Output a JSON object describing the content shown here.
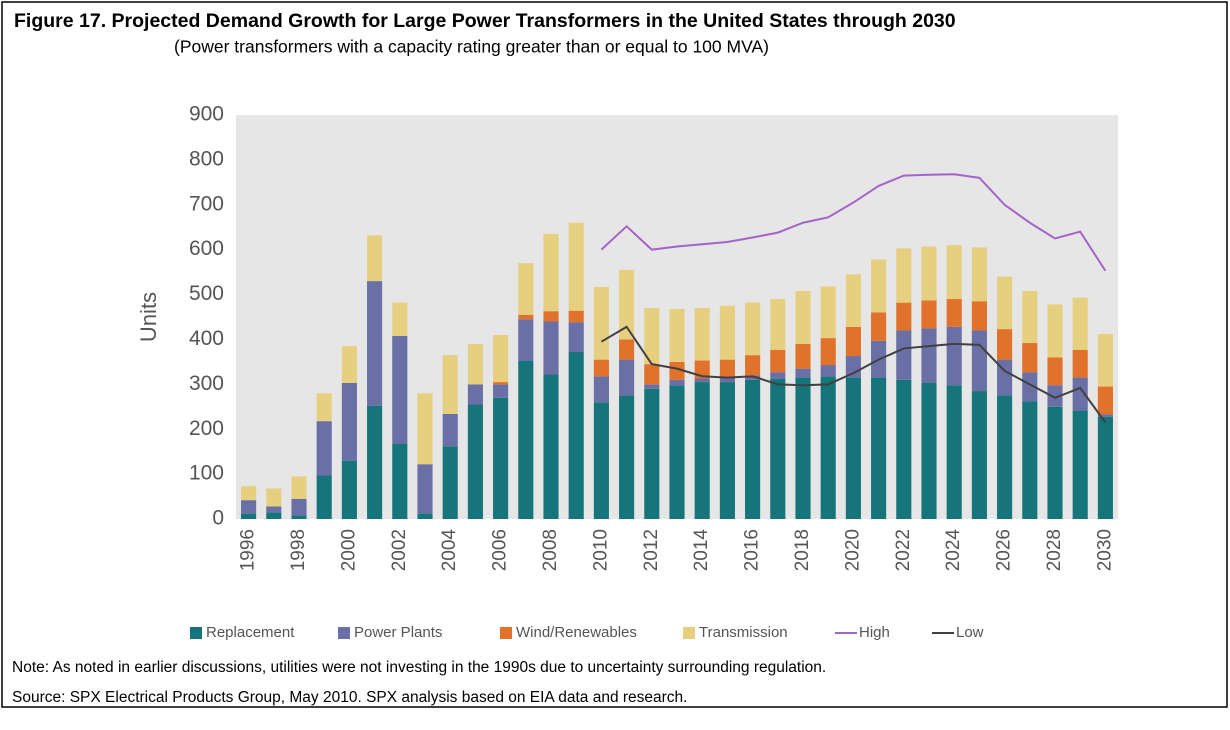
{
  "chart_data": {
    "type": "bar",
    "stacked": true,
    "grid": false,
    "title": "Figure 17. Projected Demand Growth for Large Power Transformers in the United States through 2030",
    "subtitle": "(Power transformers with a capacity rating greater than or equal to 100 MVA)",
    "y_label": "Units",
    "note": "Note: As noted in earlier discussions, utilities were not investing in the 1990s due to uncertainty surrounding regulation.",
    "source": "Source: SPX Electrical Products Group, May 2010. SPX analysis based on EIA data and research.",
    "categories": [
      "1996",
      null,
      "1998",
      null,
      "2000",
      null,
      "2002",
      null,
      "2004",
      null,
      "2006",
      null,
      "2008",
      null,
      "2010",
      null,
      "2012",
      null,
      "2014",
      null,
      "2016",
      null,
      "2018",
      null,
      "2020",
      null,
      "2022",
      null,
      "2024",
      null,
      "2026",
      null,
      "2028",
      null,
      "2030"
    ],
    "ylim": [
      0,
      900
    ],
    "yticks": [
      0,
      100,
      200,
      300,
      400,
      500,
      600,
      700,
      800,
      900
    ],
    "series": [
      {
        "name": "Replacement",
        "type": "bar",
        "color": "#16757a",
        "values": [
          12,
          15,
          8,
          97,
          130,
          252,
          168,
          12,
          162,
          255,
          270,
          352,
          322,
          372,
          260,
          275,
          290,
          298,
          305,
          305,
          310,
          312,
          315,
          318,
          315,
          315,
          310,
          303,
          298,
          285,
          275,
          262,
          250,
          242,
          228
        ]
      },
      {
        "name": "Power Plants",
        "type": "bar",
        "color": "#6a70a6",
        "values": [
          30,
          13,
          37,
          121,
          173,
          278,
          240,
          110,
          72,
          45,
          30,
          93,
          118,
          66,
          58,
          80,
          10,
          12,
          8,
          10,
          10,
          15,
          20,
          25,
          48,
          82,
          110,
          122,
          130,
          135,
          80,
          65,
          48,
          73,
          5
        ]
      },
      {
        "name": "Wind/Renewables",
        "type": "bar",
        "color": "#e0722b",
        "values": [
          0,
          0,
          0,
          0,
          0,
          0,
          0,
          0,
          0,
          0,
          5,
          10,
          23,
          26,
          37,
          45,
          45,
          40,
          40,
          40,
          45,
          50,
          55,
          60,
          65,
          63,
          62,
          62,
          62,
          65,
          68,
          65,
          62,
          62,
          62
        ]
      },
      {
        "name": "Transmission",
        "type": "bar",
        "color": "#e7cf80",
        "values": [
          31,
          40,
          50,
          62,
          82,
          102,
          74,
          158,
          131,
          90,
          105,
          115,
          172,
          196,
          162,
          155,
          125,
          118,
          117,
          120,
          117,
          113,
          118,
          115,
          117,
          118,
          121,
          120,
          120,
          120,
          117,
          116,
          118,
          116,
          117
        ]
      },
      {
        "name": "High",
        "type": "line",
        "color": "#a464c8",
        "values": [
          null,
          null,
          null,
          null,
          null,
          null,
          null,
          null,
          null,
          null,
          null,
          null,
          null,
          null,
          600,
          652,
          600,
          607,
          612,
          617,
          627,
          638,
          660,
          672,
          705,
          742,
          765,
          767,
          768,
          760,
          700,
          660,
          625,
          640,
          553
        ]
      },
      {
        "name": "Low",
        "type": "line",
        "color": "#404040",
        "values": [
          null,
          null,
          null,
          null,
          null,
          null,
          null,
          null,
          null,
          null,
          null,
          null,
          null,
          null,
          395,
          428,
          345,
          335,
          318,
          315,
          318,
          300,
          298,
          300,
          325,
          355,
          380,
          385,
          390,
          388,
          330,
          300,
          270,
          292,
          215
        ]
      }
    ]
  }
}
